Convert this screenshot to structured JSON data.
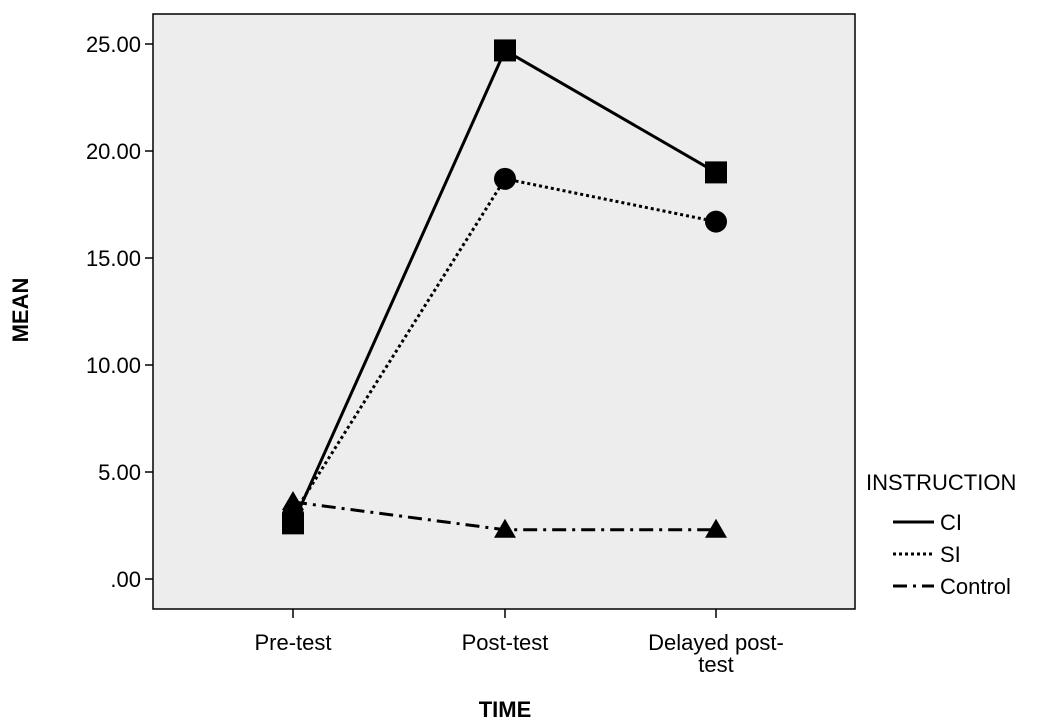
{
  "chart_data": {
    "type": "line",
    "xlabel": "TIME",
    "ylabel": "MEAN",
    "categories": [
      {
        "lines": [
          "Pre-test"
        ]
      },
      {
        "lines": [
          "Post-test"
        ]
      },
      {
        "lines": [
          "Delayed post-",
          "test"
        ]
      }
    ],
    "ylim": [
      0,
      25
    ],
    "yticks": [
      0,
      5,
      10,
      15,
      20,
      25
    ],
    "ytick_labels": [
      ".00",
      "5.00",
      "10.00",
      "15.00",
      "20.00",
      "25.00"
    ],
    "grid": false,
    "plot_background": "#ededed",
    "legend": {
      "title": "INSTRUCTION",
      "position": "right"
    },
    "series": [
      {
        "name": "CI",
        "values": [
          2.6,
          24.7,
          19.0
        ],
        "marker": "square",
        "dash": "solid",
        "color": "#000000"
      },
      {
        "name": "SI",
        "values": [
          3.0,
          18.7,
          16.7
        ],
        "marker": "circle",
        "dash": "dotted",
        "color": "#000000"
      },
      {
        "name": "Control",
        "values": [
          3.6,
          2.3,
          2.3
        ],
        "marker": "triangle",
        "dash": "dashdot",
        "color": "#000000"
      }
    ]
  }
}
